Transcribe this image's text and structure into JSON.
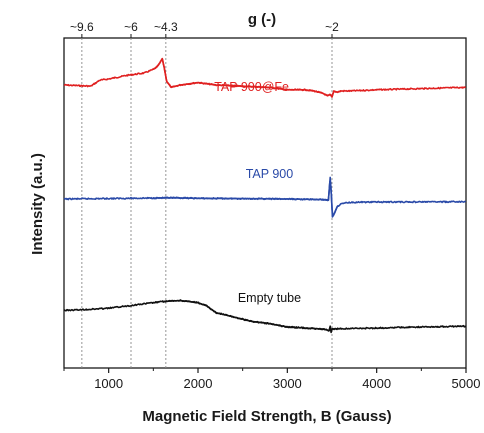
{
  "chart_data": {
    "type": "line",
    "xlabel": "Magnetic Field Strength, B (Gauss)",
    "ylabel": "Intensity (a.u.)",
    "top_axis_label": "g (-)",
    "xlim": [
      500,
      5000
    ],
    "x_ticks": [
      {
        "value": 1000,
        "label": "1000"
      },
      {
        "value": 2000,
        "label": "2000"
      },
      {
        "value": 3000,
        "label": "3000"
      },
      {
        "value": 4000,
        "label": "4000"
      },
      {
        "value": 5000,
        "label": "5000"
      }
    ],
    "g_markers": [
      {
        "field": 700,
        "label": "~9.6"
      },
      {
        "field": 1250,
        "label": "~6"
      },
      {
        "field": 1640,
        "label": "~4.3"
      },
      {
        "field": 3500,
        "label": "~2"
      }
    ],
    "y_units": "arbitrary",
    "grid": false,
    "series": [
      {
        "name": "TAP 900@Fe",
        "color": "#e02020",
        "points": [
          [
            500,
            75
          ],
          [
            800,
            74
          ],
          [
            900,
            79
          ],
          [
            1000,
            80
          ],
          [
            1200,
            83
          ],
          [
            1300,
            84
          ],
          [
            1400,
            85
          ],
          [
            1500,
            88
          ],
          [
            1540,
            90
          ],
          [
            1570,
            93
          ],
          [
            1600,
            97
          ],
          [
            1620,
            90
          ],
          [
            1650,
            78
          ],
          [
            1700,
            73
          ],
          [
            1800,
            75
          ],
          [
            1900,
            76
          ],
          [
            2000,
            77
          ],
          [
            2100,
            76
          ],
          [
            2200,
            75
          ],
          [
            2500,
            74
          ],
          [
            2800,
            73
          ],
          [
            3000,
            71
          ],
          [
            3200,
            71
          ],
          [
            3300,
            70
          ],
          [
            3400,
            68
          ],
          [
            3450,
            66
          ],
          [
            3480,
            67
          ],
          [
            3500,
            65
          ],
          [
            3520,
            70
          ],
          [
            3560,
            69
          ],
          [
            3600,
            70
          ],
          [
            3700,
            70
          ],
          [
            4000,
            71
          ],
          [
            4500,
            72
          ],
          [
            5000,
            73
          ]
        ]
      },
      {
        "name": "TAP 900",
        "color": "#2a4aa8",
        "points": [
          [
            500,
            50
          ],
          [
            1000,
            50.4
          ],
          [
            1500,
            50.8
          ],
          [
            1700,
            51
          ],
          [
            2000,
            50.6
          ],
          [
            2500,
            50.3
          ],
          [
            3000,
            50
          ],
          [
            3400,
            49.5
          ],
          [
            3460,
            49
          ],
          [
            3480,
            68
          ],
          [
            3495,
            50
          ],
          [
            3505,
            35
          ],
          [
            3520,
            37
          ],
          [
            3560,
            44
          ],
          [
            3620,
            46.5
          ],
          [
            3700,
            47.2
          ],
          [
            4000,
            47.5
          ],
          [
            4500,
            47.6
          ],
          [
            5000,
            47.7
          ]
        ]
      },
      {
        "name": "Empty tube",
        "color": "#111111",
        "points": [
          [
            500,
            8
          ],
          [
            800,
            8.5
          ],
          [
            1000,
            9
          ],
          [
            1200,
            10
          ],
          [
            1400,
            11
          ],
          [
            1600,
            12
          ],
          [
            1800,
            12.5
          ],
          [
            1900,
            12
          ],
          [
            2000,
            11.5
          ],
          [
            2100,
            10
          ],
          [
            2200,
            7
          ],
          [
            2400,
            5
          ],
          [
            2600,
            3
          ],
          [
            2800,
            2
          ],
          [
            3000,
            0.5
          ],
          [
            3200,
            0
          ],
          [
            3400,
            -0.5
          ],
          [
            3470,
            -1.2
          ],
          [
            3480,
            0.8
          ],
          [
            3490,
            -2
          ],
          [
            3500,
            -0.5
          ],
          [
            3600,
            -0.3
          ],
          [
            4000,
            0
          ],
          [
            4500,
            0.5
          ],
          [
            5000,
            0.8
          ]
        ]
      }
    ]
  }
}
